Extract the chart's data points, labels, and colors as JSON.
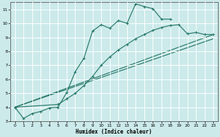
{
  "xlabel": "Humidex (Indice chaleur)",
  "background_color": "#cceaea",
  "grid_color": "#ffffff",
  "line_color": "#2a7a6a",
  "xlim": [
    -0.5,
    23.5
  ],
  "ylim": [
    3.0,
    11.5
  ],
  "yticks": [
    3,
    4,
    5,
    6,
    7,
    8,
    9,
    10,
    11
  ],
  "xticks": [
    0,
    1,
    2,
    3,
    4,
    5,
    6,
    7,
    8,
    9,
    10,
    11,
    12,
    13,
    14,
    15,
    16,
    17,
    18,
    19,
    20,
    21,
    22,
    23
  ],
  "line1_x": [
    0,
    1,
    2,
    3,
    4,
    5,
    6,
    7,
    8,
    9,
    10,
    11,
    12,
    13,
    14,
    15,
    16,
    17,
    18
  ],
  "line1_y": [
    4.0,
    3.2,
    3.55,
    3.7,
    3.95,
    4.0,
    5.05,
    6.55,
    7.5,
    9.45,
    9.9,
    9.65,
    10.2,
    10.0,
    11.4,
    11.2,
    11.05,
    10.3,
    10.3
  ],
  "line2_x": [
    0,
    5,
    6,
    7,
    8,
    9,
    10,
    11,
    12,
    13,
    14,
    15,
    16,
    17,
    18,
    19,
    20,
    21,
    22,
    23
  ],
  "line2_y": [
    4.0,
    4.2,
    4.6,
    5.0,
    5.55,
    6.2,
    7.0,
    7.6,
    8.1,
    8.5,
    8.9,
    9.2,
    9.5,
    9.7,
    9.85,
    9.9,
    9.25,
    9.35,
    9.2,
    9.2
  ],
  "line3_x": [
    0,
    23
  ],
  "line3_y": [
    4.0,
    9.2
  ],
  "line4_x": [
    0,
    23
  ],
  "line4_y": [
    4.0,
    8.9
  ]
}
